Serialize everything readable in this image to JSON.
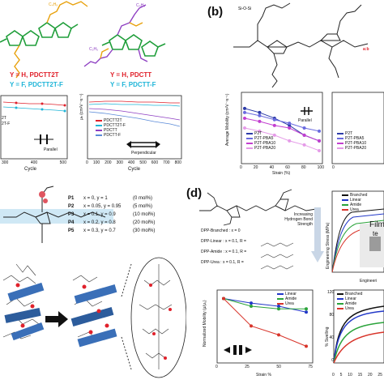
{
  "panel_b": {
    "label": "(b)",
    "top_legend": "a:b",
    "left_chart": {
      "ylabel": "Average Mobility (cm²V⁻¹s⁻¹)",
      "xlabel": "Strain (%)",
      "xticks": [
        "0",
        "20",
        "40",
        "60",
        "80",
        "100"
      ],
      "direction": "Parallel",
      "legend": [
        "P2T",
        "P2T-PBA5",
        "P2T-PBA10",
        "P2T-PBA20"
      ]
    },
    "right_chart": {
      "xticks": [
        "0"
      ],
      "legend": [
        "P2T",
        "P2T-PBA5",
        "P2T-PBA10",
        "P2T-PBA20"
      ]
    }
  },
  "panel_a": {
    "red_line_1": "Y = H, PDCTT2T",
    "cyan_line_1": "Y = F, PDCTT2T-F",
    "red_line_2": "Y = H, PDCTT",
    "cyan_line_2": "Y = F, PDCTT-F",
    "left_chart": {
      "legend_partial": [
        "2T",
        "2T-F"
      ],
      "xlabel": "Cycle",
      "xticks": [
        "300",
        "400",
        "500"
      ],
      "direction": "Parallel"
    },
    "right_chart": {
      "ylabel": "μₕ (cm²V⁻¹s⁻¹)",
      "legend": [
        "PDCTT2T",
        "PDCTT2T-F",
        "PDCTT",
        "PDCTT-F"
      ],
      "xlabel": "Cycle",
      "xticks": [
        "0",
        "100",
        "200",
        "300",
        "400",
        "500",
        "600",
        "700",
        "800"
      ],
      "direction": "Perpendicular"
    }
  },
  "panel_c": {
    "rows": [
      {
        "name": "P1",
        "xy": "x = 0, y = 1",
        "pct": "(0 mol%)"
      },
      {
        "name": "P2",
        "xy": "x = 0.05, y = 0.95",
        "pct": "(5 mol%)"
      },
      {
        "name": "P3",
        "xy": "x = 0.1, y = 0.9",
        "pct": "(10 mol%)"
      },
      {
        "name": "P4",
        "xy": "x = 0.2, y = 0.8",
        "pct": "(20 mol%)"
      },
      {
        "name": "P5",
        "xy": "x = 0.3, y = 0.7",
        "pct": "(30 mol%)"
      }
    ]
  },
  "panel_d": {
    "label": "(d)",
    "variants": [
      "DPP-Branched : x = 0",
      "DPP-Linear : x = 0.1, R =",
      "DPP-Amide : x = 0.1, R =",
      "DPP-Urea : x = 0.1, R ="
    ],
    "arrow_text": "Increasing Hydrogen Bond Strength",
    "mobility_chart": {
      "ylabel": "Normalized Mobility (μ/μ₀)",
      "xlabel": "Strain %",
      "xticks": [
        "0",
        "25",
        "50",
        "75"
      ],
      "legend": [
        "Linear",
        "Amide",
        "Urea"
      ]
    },
    "stress_chart": {
      "ylabel": "Engineering Stress (MPa)",
      "xlabel": "Engineeri",
      "legend": [
        "Branched",
        "Linear",
        "Amide",
        "Urea"
      ],
      "inset_text": "Film",
      "inset_text2": "te"
    },
    "swelling_chart": {
      "ylabel": "% Swelling",
      "xticks": [
        "0",
        "5",
        "10",
        "15",
        "20",
        "25"
      ],
      "yticks": [
        "0",
        "40",
        "80",
        "120"
      ],
      "legend": [
        "Branched",
        "Linear",
        "Amide",
        "Urea"
      ]
    }
  },
  "colors": {
    "red": "#e0212b",
    "cyan": "#1fb5d8",
    "orange_chain": "#e8a10c",
    "purple_chain": "#8e3fc2",
    "green_backbone": "#1f9e3a",
    "blue_chain": "#2b6ed6",
    "branched_black": "#111111",
    "linear_blue": "#2238c8",
    "amide_green": "#2aa33a",
    "urea_red": "#d8342a"
  },
  "chart_data": [
    {
      "type": "line",
      "title": "",
      "xlabel": "Strain %",
      "ylabel": "Normalized Mobility (μ/μ₀)",
      "x": [
        0,
        25,
        50,
        75
      ],
      "series": [
        {
          "name": "Linear",
          "values": [
            1.0,
            0.7,
            0.55,
            0.35
          ]
        },
        {
          "name": "Amide",
          "values": [
            1.0,
            0.55,
            0.45,
            0.45
          ]
        },
        {
          "name": "Urea",
          "values": [
            1.0,
            0.12,
            0.06,
            0.025
          ]
        }
      ],
      "yscale": "log"
    },
    {
      "type": "line",
      "title": "",
      "xlabel": "Strain (%)",
      "ylabel": "Average Mobility (cm²V⁻¹s⁻¹)",
      "x": [
        0,
        20,
        40,
        60,
        80,
        100
      ],
      "series": [
        {
          "name": "P2T",
          "values": [
            0.2,
            0.15,
            0.1,
            0.06,
            0.03,
            0.02
          ]
        },
        {
          "name": "P2T-PBA5",
          "values": [
            0.15,
            0.12,
            0.09,
            0.07,
            0.05,
            0.04
          ]
        },
        {
          "name": "P2T-PBA10",
          "values": [
            0.1,
            0.08,
            0.06,
            0.05,
            0.03,
            0.02
          ]
        },
        {
          "name": "P2T-PBA20",
          "values": [
            0.05,
            0.04,
            0.03,
            0.02,
            0.015,
            0.01
          ]
        }
      ],
      "yscale": "log"
    }
  ]
}
